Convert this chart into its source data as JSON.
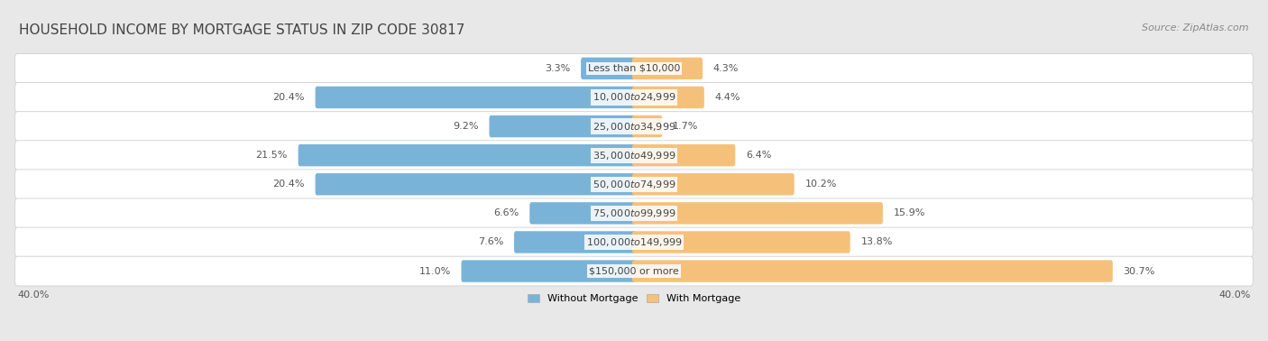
{
  "title": "HOUSEHOLD INCOME BY MORTGAGE STATUS IN ZIP CODE 30817",
  "source": "Source: ZipAtlas.com",
  "categories": [
    "Less than $10,000",
    "$10,000 to $24,999",
    "$25,000 to $34,999",
    "$35,000 to $49,999",
    "$50,000 to $74,999",
    "$75,000 to $99,999",
    "$100,000 to $149,999",
    "$150,000 or more"
  ],
  "without_mortgage": [
    3.3,
    20.4,
    9.2,
    21.5,
    20.4,
    6.6,
    7.6,
    11.0
  ],
  "with_mortgage": [
    4.3,
    4.4,
    1.7,
    6.4,
    10.2,
    15.9,
    13.8,
    30.7
  ],
  "without_color": "#7ab3d8",
  "with_color": "#f5c17a",
  "axis_limit": 40.0,
  "bg_color": "#e8e8e8",
  "row_color": "#f5f5f5",
  "row_edge_color": "#d0d0d0",
  "title_color": "#444444",
  "source_color": "#888888",
  "label_color": "#444444",
  "pct_color": "#555555",
  "title_fontsize": 11,
  "label_fontsize": 8,
  "pct_fontsize": 8,
  "axis_label_fontsize": 8,
  "legend_fontsize": 8,
  "source_fontsize": 8
}
